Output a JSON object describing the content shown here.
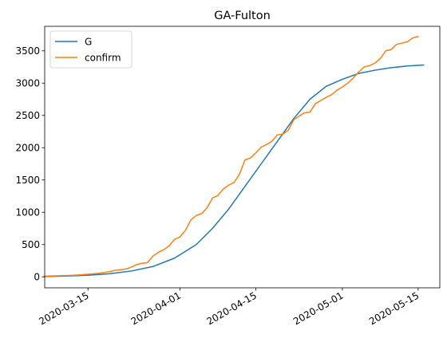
{
  "chart_data": {
    "type": "line",
    "title": "GA-Fulton",
    "xlabel": "",
    "ylabel": "",
    "x_range": [
      "2020-03-07",
      "2020-05-19"
    ],
    "ylim": [
      -170,
      3880
    ],
    "grid": false,
    "legend_position": "top-left",
    "x_ticks": [
      "2020-03-15",
      "2020-04-01",
      "2020-04-15",
      "2020-05-01",
      "2020-05-15"
    ],
    "y_ticks": [
      0,
      500,
      1000,
      1500,
      2000,
      2500,
      3000,
      3500
    ],
    "series": [
      {
        "name": "G",
        "color": "#1f77b4",
        "x": [
          "2020-03-07",
          "2020-03-11",
          "2020-03-15",
          "2020-03-19",
          "2020-03-23",
          "2020-03-27",
          "2020-03-31",
          "2020-04-04",
          "2020-04-07",
          "2020-04-10",
          "2020-04-13",
          "2020-04-16",
          "2020-04-19",
          "2020-04-22",
          "2020-04-25",
          "2020-04-28",
          "2020-05-01",
          "2020-05-04",
          "2020-05-07",
          "2020-05-10",
          "2020-05-13",
          "2020-05-16"
        ],
        "values": [
          5,
          12,
          25,
          48,
          90,
          160,
          290,
          500,
          750,
          1050,
          1400,
          1750,
          2100,
          2450,
          2750,
          2950,
          3060,
          3150,
          3200,
          3240,
          3265,
          3280
        ]
      },
      {
        "name": "confirm",
        "color": "#ff7f0e",
        "x": [
          "2020-03-07",
          "2020-03-09",
          "2020-03-11",
          "2020-03-13",
          "2020-03-15",
          "2020-03-17",
          "2020-03-19",
          "2020-03-20",
          "2020-03-21",
          "2020-03-22",
          "2020-03-23",
          "2020-03-24",
          "2020-03-25",
          "2020-03-26",
          "2020-03-27",
          "2020-03-28",
          "2020-03-29",
          "2020-03-30",
          "2020-03-31",
          "2020-04-01",
          "2020-04-02",
          "2020-04-03",
          "2020-04-04",
          "2020-04-05",
          "2020-04-06",
          "2020-04-07",
          "2020-04-08",
          "2020-04-09",
          "2020-04-10",
          "2020-04-11",
          "2020-04-12",
          "2020-04-13",
          "2020-04-14",
          "2020-04-15",
          "2020-04-16",
          "2020-04-17",
          "2020-04-18",
          "2020-04-19",
          "2020-04-20",
          "2020-04-21",
          "2020-04-22",
          "2020-04-23",
          "2020-04-24",
          "2020-04-25",
          "2020-04-26",
          "2020-04-27",
          "2020-04-28",
          "2020-04-29",
          "2020-04-30",
          "2020-05-01",
          "2020-05-02",
          "2020-05-03",
          "2020-05-04",
          "2020-05-05",
          "2020-05-06",
          "2020-05-07",
          "2020-05-08",
          "2020-05-09",
          "2020-05-10",
          "2020-05-11",
          "2020-05-12",
          "2020-05-13",
          "2020-05-14",
          "2020-05-15"
        ],
        "values": [
          10,
          15,
          20,
          28,
          40,
          55,
          80,
          100,
          110,
          120,
          150,
          190,
          210,
          220,
          320,
          380,
          420,
          480,
          580,
          620,
          720,
          880,
          950,
          980,
          1070,
          1220,
          1260,
          1360,
          1420,
          1460,
          1590,
          1810,
          1840,
          1920,
          2010,
          2050,
          2100,
          2200,
          2210,
          2270,
          2430,
          2490,
          2540,
          2550,
          2680,
          2730,
          2780,
          2820,
          2890,
          2940,
          3000,
          3080,
          3170,
          3250,
          3270,
          3310,
          3380,
          3500,
          3520,
          3600,
          3620,
          3640,
          3700,
          3720
        ]
      }
    ]
  }
}
